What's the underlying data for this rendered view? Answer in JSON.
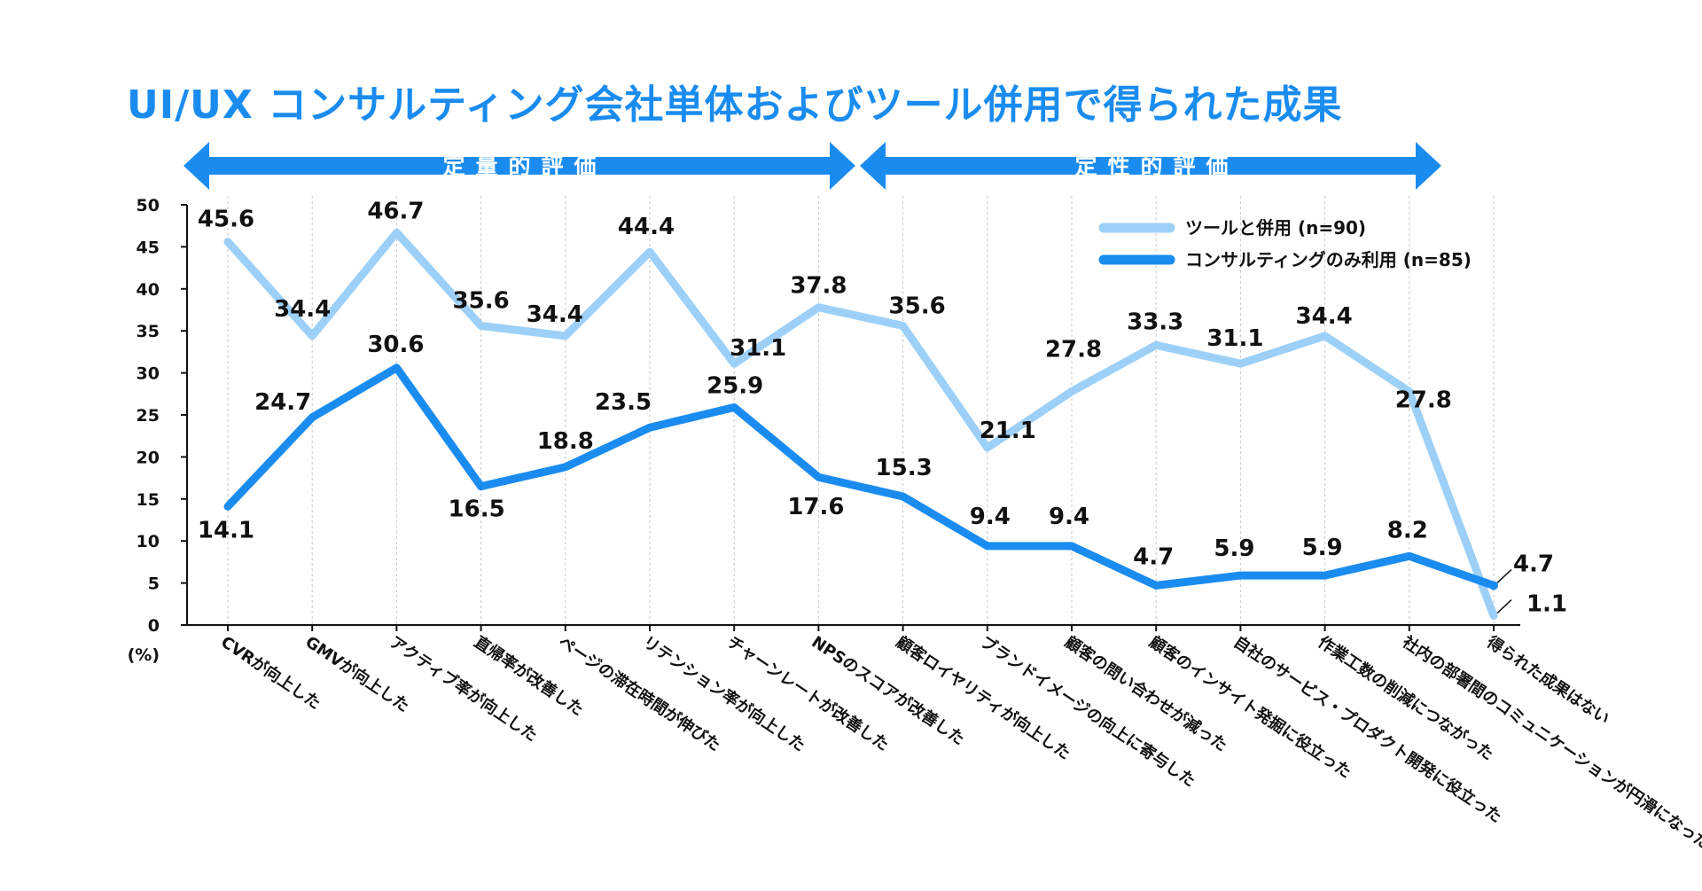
{
  "title": "UI/UX コンサルティング会社単体およびツール併用で得られた成果",
  "sections": {
    "quantitative": "定量的評価",
    "qualitative": "定性的評価"
  },
  "colors": {
    "accent": "#1a8cf0",
    "tool_series": "#9dd0f8",
    "consulting_series": "#1a8cf0"
  },
  "chart_data": {
    "type": "line",
    "title": "UI/UX コンサルティング会社単体およびツール併用で得られた成果",
    "ylabel": "(%)",
    "ylim": [
      0,
      50
    ],
    "yticks": [
      0,
      5,
      10,
      15,
      20,
      25,
      30,
      35,
      40,
      45,
      50
    ],
    "grid": "vertical dotted",
    "legend_position": "top-right",
    "categories": [
      "CVRが向上した",
      "GMVが向上した",
      "アクティブ率が向上した",
      "直帰率が改善した",
      "ページの滞在時間が伸びた",
      "リテンション率が向上した",
      "チャーンレートが改善した",
      "NPSのスコアが改善した",
      "顧客ロイヤリティが向上した",
      "ブランドイメージの向上に寄与した",
      "顧客の問い合わせが減った",
      "顧客のインサイト発掘に役立った",
      "自社のサービス・プロダクト開発に役立った",
      "作業工数の削減につながった",
      "社内の部署間のコミュニケーションが円滑になった",
      "得られた成果はない"
    ],
    "series": [
      {
        "name": "ツールと併用 (n=90)",
        "values": [
          45.6,
          34.4,
          46.7,
          35.6,
          34.4,
          44.4,
          31.1,
          37.8,
          35.6,
          21.1,
          27.8,
          33.3,
          31.1,
          34.4,
          27.8,
          1.1
        ]
      },
      {
        "name": "コンサルティングのみ利用 (n=85)",
        "values": [
          14.1,
          24.7,
          30.6,
          16.5,
          18.8,
          23.5,
          25.9,
          17.6,
          15.3,
          9.4,
          9.4,
          4.7,
          5.9,
          5.9,
          8.2,
          4.7
        ]
      }
    ]
  }
}
